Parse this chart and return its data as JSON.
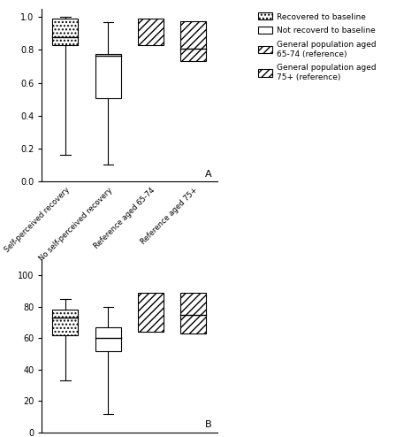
{
  "panel_A": {
    "box1": {
      "q1": 0.83,
      "median": 0.875,
      "q3": 0.99,
      "whisker_low": 0.165,
      "whisker_high": 1.0
    },
    "box2": {
      "q1": 0.505,
      "median": 0.765,
      "q3": 0.775,
      "whisker_low": 0.105,
      "whisker_high": 0.97
    },
    "ref1": {
      "low": 0.83,
      "high": 0.99
    },
    "ref2": {
      "low": 0.735,
      "high": 0.975
    },
    "ref2_median": 0.81,
    "ylim": [
      0.0,
      1.05
    ],
    "yticks": [
      0.0,
      0.2,
      0.4,
      0.6,
      0.8,
      1.0
    ],
    "label": "A"
  },
  "panel_B": {
    "box1": {
      "q1": 62,
      "median": 73,
      "q3": 78,
      "whisker_low": 33,
      "whisker_high": 85
    },
    "box2": {
      "q1": 52,
      "median": 60,
      "q3": 67,
      "whisker_low": 12,
      "whisker_high": 80
    },
    "ref1": {
      "low": 64,
      "high": 89
    },
    "ref2": {
      "low": 63,
      "high": 89
    },
    "ref2_median": 75,
    "ylim": [
      0,
      110
    ],
    "yticks": [
      0,
      20,
      40,
      60,
      80,
      100
    ],
    "label": "B"
  },
  "categories": [
    "Self-perceived recovery",
    "No self-perceived recovery",
    "Reference aged 65-74",
    "Reference aged 75+"
  ],
  "legend_entries": [
    "Recovered to baseline",
    "Not recoverd to baseline",
    "General population aged\n65-74 (reference)",
    "General population aged\n75+ (reference)"
  ],
  "bg_color": "#ffffff"
}
